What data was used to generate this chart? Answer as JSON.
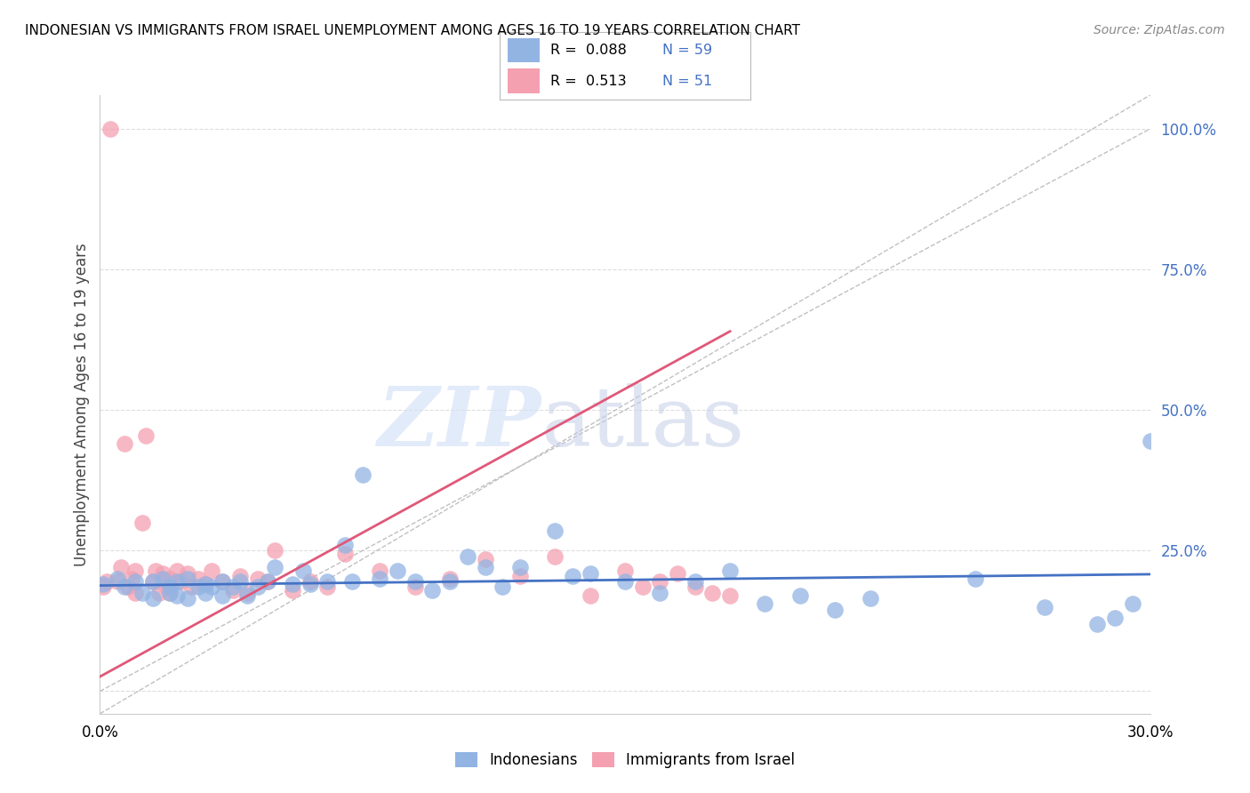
{
  "title": "INDONESIAN VS IMMIGRANTS FROM ISRAEL UNEMPLOYMENT AMONG AGES 16 TO 19 YEARS CORRELATION CHART",
  "source": "Source: ZipAtlas.com",
  "ylabel_label": "Unemployment Among Ages 16 to 19 years",
  "xmin": 0.0,
  "xmax": 0.3,
  "ymin": -0.04,
  "ymax": 1.06,
  "yticks": [
    0.0,
    0.25,
    0.5,
    0.75,
    1.0
  ],
  "ytick_labels": [
    "",
    "25.0%",
    "50.0%",
    "75.0%",
    "100.0%"
  ],
  "blue_color": "#92b4e3",
  "pink_color": "#f4a0b0",
  "trend_blue": "#4472c4",
  "trend_pink": "#e05878",
  "ref_line_color": "#c0c0c0",
  "legend_R_blue": "R =  0.088",
  "legend_N_blue": "N = 59",
  "legend_R_pink": "R =  0.513",
  "legend_N_pink": "N = 51",
  "legend_label_blue": "Indonesians",
  "legend_label_pink": "Immigrants from Israel",
  "watermark_zip": "ZIP",
  "watermark_atlas": "atlas",
  "blue_scatter_x": [
    0.001,
    0.005,
    0.007,
    0.01,
    0.012,
    0.015,
    0.015,
    0.018,
    0.02,
    0.02,
    0.022,
    0.022,
    0.025,
    0.025,
    0.028,
    0.03,
    0.03,
    0.032,
    0.035,
    0.035,
    0.038,
    0.04,
    0.042,
    0.045,
    0.048,
    0.05,
    0.055,
    0.058,
    0.06,
    0.065,
    0.07,
    0.072,
    0.075,
    0.08,
    0.085,
    0.09,
    0.095,
    0.1,
    0.105,
    0.11,
    0.115,
    0.12,
    0.13,
    0.135,
    0.14,
    0.15,
    0.16,
    0.17,
    0.18,
    0.19,
    0.2,
    0.21,
    0.22,
    0.25,
    0.27,
    0.285,
    0.29,
    0.295,
    0.3
  ],
  "blue_scatter_y": [
    0.19,
    0.2,
    0.185,
    0.195,
    0.175,
    0.195,
    0.165,
    0.2,
    0.185,
    0.175,
    0.195,
    0.17,
    0.2,
    0.165,
    0.185,
    0.19,
    0.175,
    0.185,
    0.195,
    0.17,
    0.185,
    0.195,
    0.17,
    0.185,
    0.195,
    0.22,
    0.19,
    0.215,
    0.19,
    0.195,
    0.26,
    0.195,
    0.385,
    0.2,
    0.215,
    0.195,
    0.18,
    0.195,
    0.24,
    0.22,
    0.185,
    0.22,
    0.285,
    0.205,
    0.21,
    0.195,
    0.175,
    0.195,
    0.215,
    0.155,
    0.17,
    0.145,
    0.165,
    0.2,
    0.15,
    0.12,
    0.13,
    0.155,
    0.445
  ],
  "pink_scatter_x": [
    0.001,
    0.002,
    0.003,
    0.005,
    0.006,
    0.007,
    0.008,
    0.009,
    0.01,
    0.01,
    0.012,
    0.013,
    0.015,
    0.016,
    0.017,
    0.018,
    0.019,
    0.02,
    0.02,
    0.022,
    0.023,
    0.025,
    0.026,
    0.028,
    0.03,
    0.032,
    0.035,
    0.038,
    0.04,
    0.042,
    0.045,
    0.048,
    0.05,
    0.055,
    0.06,
    0.065,
    0.07,
    0.08,
    0.09,
    0.1,
    0.11,
    0.12,
    0.13,
    0.14,
    0.15,
    0.155,
    0.16,
    0.165,
    0.17,
    0.175,
    0.18
  ],
  "pink_scatter_y": [
    0.185,
    0.195,
    1.0,
    0.195,
    0.22,
    0.44,
    0.185,
    0.2,
    0.175,
    0.215,
    0.3,
    0.455,
    0.195,
    0.215,
    0.175,
    0.21,
    0.185,
    0.2,
    0.175,
    0.215,
    0.195,
    0.21,
    0.185,
    0.2,
    0.19,
    0.215,
    0.195,
    0.18,
    0.205,
    0.175,
    0.2,
    0.195,
    0.25,
    0.18,
    0.195,
    0.185,
    0.245,
    0.215,
    0.185,
    0.2,
    0.235,
    0.205,
    0.24,
    0.17,
    0.215,
    0.185,
    0.195,
    0.21,
    0.185,
    0.175,
    0.17
  ],
  "blue_trend_x": [
    0.0,
    0.3
  ],
  "blue_trend_y": [
    0.188,
    0.208
  ],
  "pink_trend_x": [
    0.0,
    0.18
  ],
  "pink_trend_y": [
    0.026,
    0.64
  ]
}
